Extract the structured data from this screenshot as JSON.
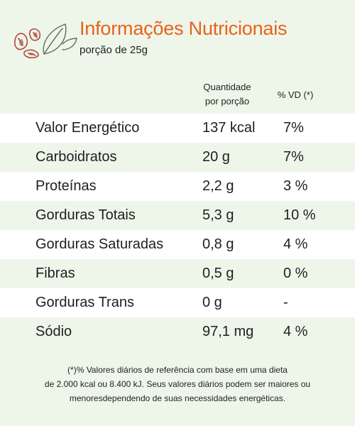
{
  "header": {
    "title": "Informações Nutricionais",
    "subtitle": "porção de 25g",
    "logo_icon": "nuts-and-leaf-icon",
    "accent_color": "#e8621c"
  },
  "columns": {
    "quantity_line1": "Quantidade",
    "quantity_line2": "por porção",
    "daily_value": "% VD (*)"
  },
  "rows": [
    {
      "name": "Valor Energético",
      "quantity": "137 kcal",
      "daily_value": "7%"
    },
    {
      "name": "Carboidratos",
      "quantity": "20 g",
      "daily_value": "7%"
    },
    {
      "name": "Proteínas",
      "quantity": "2,2 g",
      "daily_value": "3 %"
    },
    {
      "name": "Gorduras Totais",
      "quantity": "5,3 g",
      "daily_value": "10 %"
    },
    {
      "name": "Gorduras Saturadas",
      "quantity": "0,8 g",
      "daily_value": "4 %"
    },
    {
      "name": "Fibras",
      "quantity": "0,5 g",
      "daily_value": "0 %"
    },
    {
      "name": "Gorduras Trans",
      "quantity": "0 g",
      "daily_value": "-"
    },
    {
      "name": "Sódio",
      "quantity": "97,1 mg",
      "daily_value": "4 %"
    }
  ],
  "footnote": {
    "line1": "(*)% Valores diários de referência com base em uma dieta",
    "line2": "de 2.000 kcal ou 8.400 kJ. Seus valores diários podem ser maiores ou",
    "line3": "menoresdependendo de suas necessidades energéticas."
  }
}
